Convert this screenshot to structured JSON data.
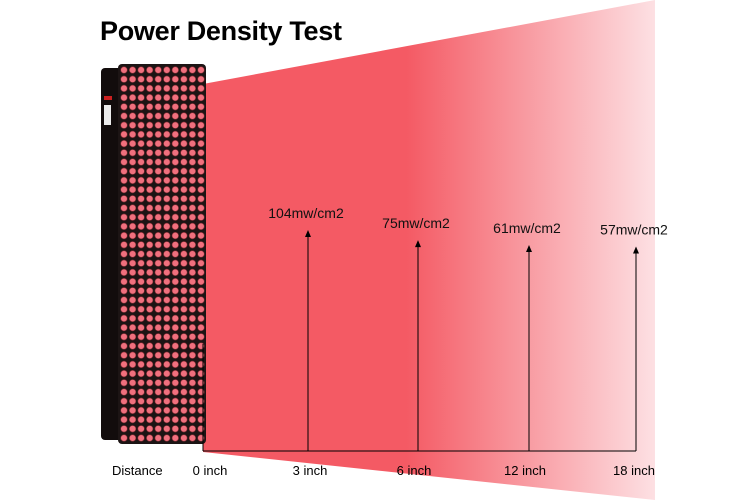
{
  "title": "Power Density Test",
  "chart_data": {
    "type": "bar",
    "title": "Power Density Test",
    "x_axis_label": "Distance",
    "unit": "mw/cm2",
    "points": [
      {
        "distance_label": "0 inch",
        "distance_in": 0,
        "value": null,
        "label": null
      },
      {
        "distance_label": "3 inch",
        "distance_in": 3,
        "value": 104,
        "label": "104mw/cm2"
      },
      {
        "distance_label": "6 inch",
        "distance_in": 6,
        "value": 75,
        "label": "75mw/cm2"
      },
      {
        "distance_label": "12 inch",
        "distance_in": 12,
        "value": 61,
        "label": "61mw/cm2"
      },
      {
        "distance_label": "18 inch",
        "distance_in": 18,
        "value": 57,
        "label": "57mw/cm2"
      }
    ]
  },
  "colors": {
    "beam_near": "#f45a64",
    "beam_far": "#fde0e3",
    "panel": "#1c1414",
    "led": "#f0707e",
    "led_rim": "#7a2a30",
    "axis": "#000000"
  },
  "icons": {
    "panel": "red-light-panel-icon",
    "arrow": "arrow-up-icon"
  }
}
